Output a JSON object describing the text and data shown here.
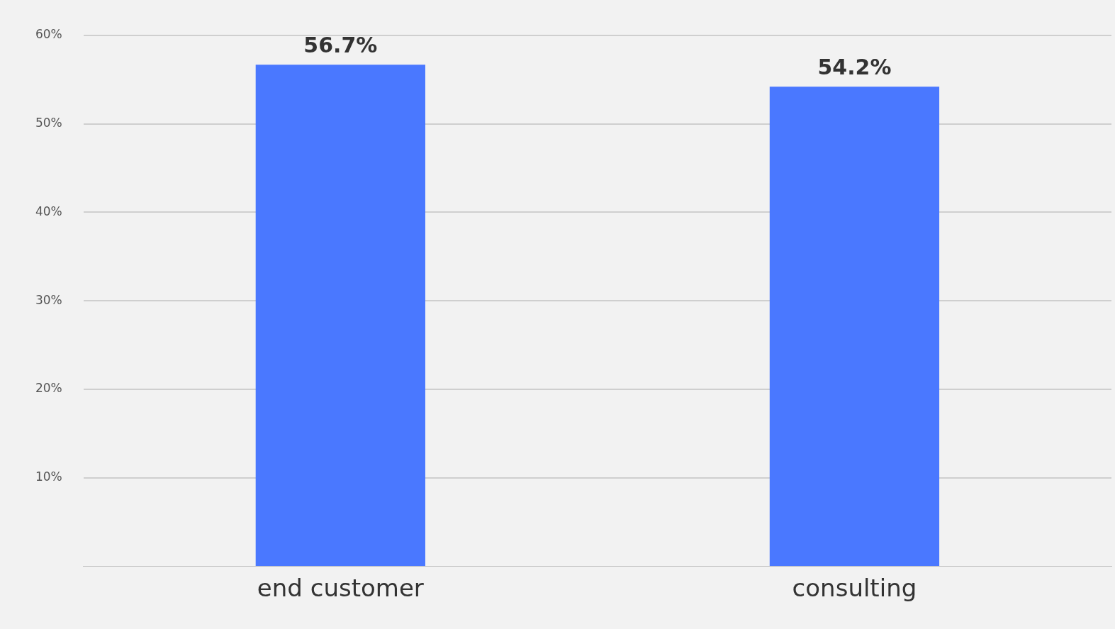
{
  "chart_data": {
    "type": "bar",
    "categories": [
      "end customer",
      "consulting"
    ],
    "values": [
      56.7,
      54.2
    ],
    "value_labels": [
      "56.7%",
      "54.2%"
    ],
    "color": "#4a78ff",
    "ylim": [
      0,
      60
    ],
    "yticks": [
      {
        "value": 10,
        "label": "10%"
      },
      {
        "value": 20,
        "label": "20%"
      },
      {
        "value": 30,
        "label": "30%"
      },
      {
        "value": 40,
        "label": "40%"
      },
      {
        "value": 50,
        "label": "50%"
      },
      {
        "value": 60,
        "label": "60%"
      }
    ],
    "grid": "y",
    "legend": false
  }
}
